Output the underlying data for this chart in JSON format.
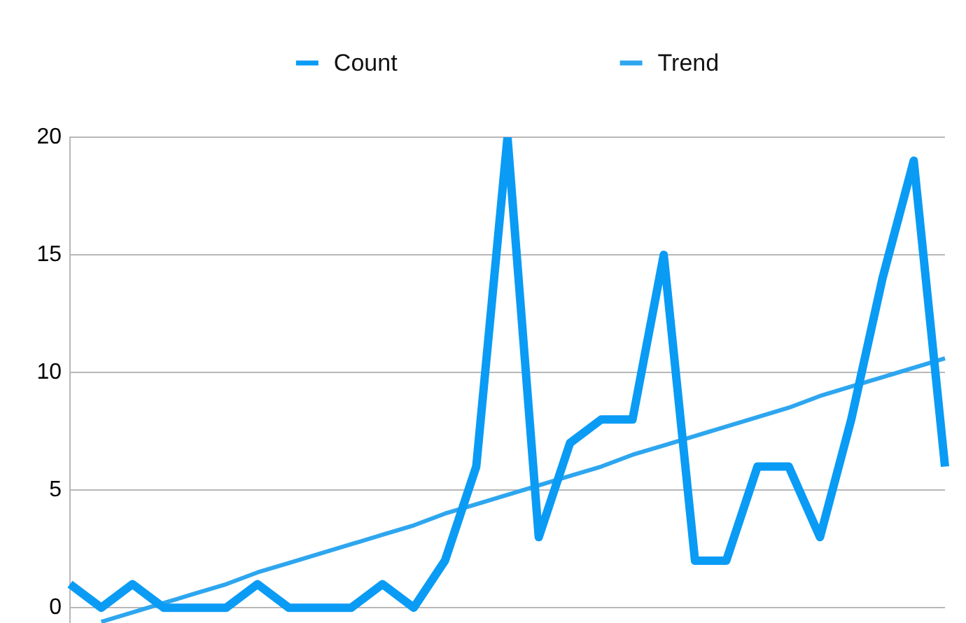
{
  "chart_data": {
    "type": "line",
    "categories": [
      null,
      null,
      null,
      null,
      null,
      null,
      null,
      null,
      null,
      null,
      null,
      null,
      null,
      null,
      null,
      null,
      null,
      null,
      null,
      null,
      null,
      null,
      null,
      null,
      null,
      null,
      null,
      null,
      null
    ],
    "series": [
      {
        "name": "Count",
        "color": "#0a9bf5",
        "values": [
          1,
          0,
          1,
          0,
          0,
          0,
          1,
          0,
          0,
          0,
          1,
          0,
          2,
          6,
          20,
          3,
          7,
          8,
          8,
          15,
          2,
          2,
          6,
          6,
          3,
          8,
          14,
          19,
          6
        ]
      },
      {
        "name": "Trend",
        "type": "line",
        "color": "#2ea6ef",
        "values": [
          null,
          -0.6,
          -0.2,
          0.2,
          0.6,
          1.0,
          1.5,
          1.9,
          2.3,
          2.7,
          3.1,
          3.5,
          4.0,
          4.4,
          4.8,
          5.2,
          5.6,
          6.0,
          6.5,
          6.9,
          7.3,
          7.7,
          8.1,
          8.5,
          9.0,
          9.4,
          9.8,
          10.2,
          10.6
        ]
      }
    ],
    "ylim": [
      -0.65,
      20
    ],
    "yticks": [
      0,
      5,
      10,
      15,
      20
    ],
    "grid": "y",
    "legend": "top",
    "tick_labels": "y",
    "marker": "none"
  }
}
